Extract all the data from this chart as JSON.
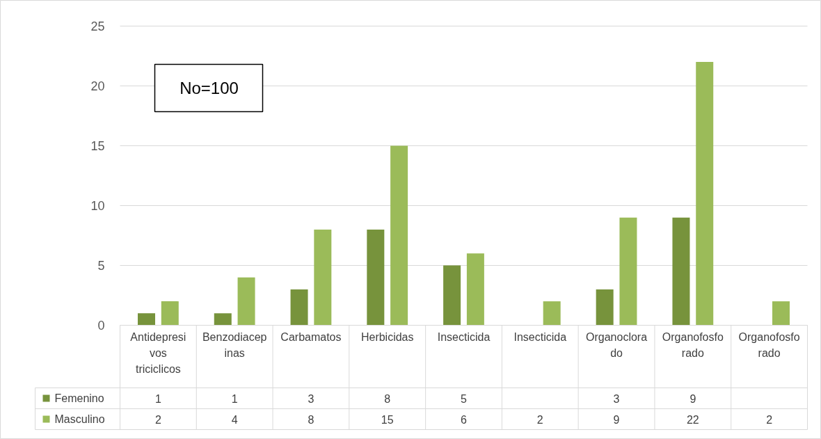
{
  "chart_data": {
    "type": "bar",
    "categories": [
      "Antidepresivos triciclicos",
      "Benzodiacepinas",
      "Carbamatos",
      "Herbicidas",
      "Insecticida",
      "Insecticida",
      "Organoclorado",
      "Organofosforado",
      "Organofosforado"
    ],
    "series": [
      {
        "name": "Femenino",
        "color": "#77933c",
        "values": [
          1,
          1,
          3,
          8,
          5,
          null,
          3,
          9,
          null
        ]
      },
      {
        "name": "Masculino",
        "color": "#9bbb59",
        "values": [
          2,
          4,
          8,
          15,
          6,
          2,
          9,
          22,
          2
        ]
      }
    ],
    "ylim": [
      0,
      25
    ],
    "yticks": [
      0,
      5,
      10,
      15,
      20,
      25
    ],
    "grid": "y",
    "legend": "bottom",
    "data_labels": true,
    "annotations": [
      "No=100"
    ]
  }
}
